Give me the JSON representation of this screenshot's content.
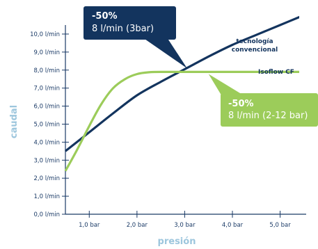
{
  "colors": {
    "conventional": "#13345e",
    "isoflow": "#9ccc5a",
    "axis": "#1a3a66",
    "axis_title": "#9dc6dd",
    "callout_blue": "#13345e",
    "callout_green": "#9ccc5a"
  },
  "chart_data": {
    "type": "line",
    "xlabel": "presión",
    "ylabel": "caudal",
    "xlim": [
      0.5,
      5.4
    ],
    "ylim": [
      0,
      10.5
    ],
    "y_ticks": [
      {
        "value": 0,
        "label": "0,0 l/min"
      },
      {
        "value": 1,
        "label": "1,0 l/min"
      },
      {
        "value": 2,
        "label": "2,0 l/min"
      },
      {
        "value": 3,
        "label": "3,0 l/min"
      },
      {
        "value": 4,
        "label": "4,0 l/min"
      },
      {
        "value": 5,
        "label": "5,0 l/min"
      },
      {
        "value": 6,
        "label": "6,0 l/min"
      },
      {
        "value": 7,
        "label": "7,0 l/min"
      },
      {
        "value": 8,
        "label": "8,0 l/min"
      },
      {
        "value": 9,
        "label": "9,0 l/min"
      },
      {
        "value": 10,
        "label": "10,0 l/min"
      }
    ],
    "x_ticks": [
      {
        "value": 1,
        "label": "1,0 bar"
      },
      {
        "value": 2,
        "label": "2,0 bar"
      },
      {
        "value": 3,
        "label": "3,0 bar"
      },
      {
        "value": 4,
        "label": "4,0 bar"
      },
      {
        "value": 5,
        "label": "5,0 bar"
      }
    ],
    "series": [
      {
        "name": "tecnologia convencional",
        "name_lines": [
          "tecnología",
          "convencional"
        ],
        "color": "#13345e",
        "x": [
          0.5,
          1.0,
          1.5,
          2.0,
          2.5,
          3.0,
          3.5,
          4.0,
          4.5,
          5.0,
          5.5
        ],
        "y": [
          3.5,
          4.55,
          5.6,
          6.6,
          7.35,
          8.05,
          8.75,
          9.4,
          9.95,
          10.5,
          11.05
        ]
      },
      {
        "name": "Isoflow CF",
        "color": "#9ccc5a",
        "x": [
          0.5,
          0.75,
          1.0,
          1.25,
          1.5,
          1.75,
          2.0,
          2.25,
          2.5,
          3.0,
          3.5,
          4.0,
          4.5,
          5.0,
          5.5
        ],
        "y": [
          2.4,
          3.6,
          4.9,
          6.1,
          7.0,
          7.5,
          7.78,
          7.88,
          7.9,
          7.9,
          7.9,
          7.9,
          7.9,
          7.9,
          7.9
        ]
      }
    ],
    "annotations": [
      {
        "id": "conventional",
        "big": "-50%",
        "small": "8 l/min (3bar)",
        "color": "#13345e",
        "target": [
          3.05,
          8.1
        ]
      },
      {
        "id": "isoflow",
        "big": "-50%",
        "small": "8 l/min (2-12 bar)",
        "color": "#9ccc5a",
        "target": [
          3.5,
          7.9
        ]
      }
    ]
  }
}
